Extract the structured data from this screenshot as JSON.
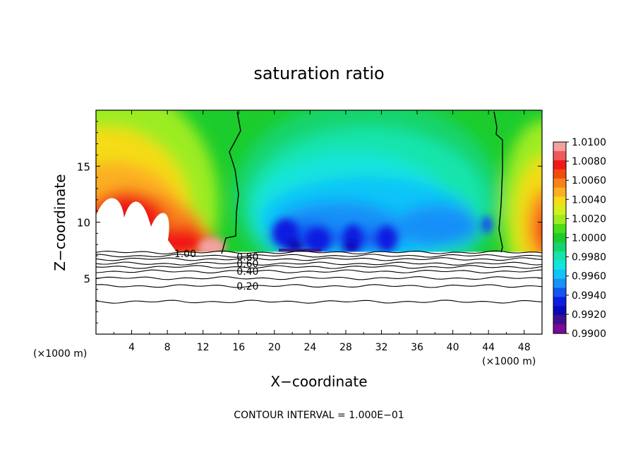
{
  "chart_data": {
    "type": "heatmap",
    "title": "saturation ratio",
    "xlabel": "X−coordinate",
    "ylabel": "Z−coordinate",
    "x_unit_left": "(×1000 m)",
    "x_unit_right": "(×1000 m)",
    "footer": "CONTOUR INTERVAL = 1.000E−01",
    "xlim": [
      0,
      50
    ],
    "ylim": [
      0,
      20
    ],
    "x_ticks": [
      4,
      8,
      12,
      16,
      20,
      24,
      28,
      32,
      36,
      40,
      44,
      48
    ],
    "y_ticks": [
      5,
      10,
      15
    ],
    "colorbar": {
      "labels": [
        "1.0100",
        "1.0080",
        "1.0060",
        "1.0040",
        "1.0020",
        "1.0000",
        "0.9980",
        "0.9960",
        "0.9940",
        "0.9920",
        "0.9900"
      ],
      "bands": [
        {
          "value": 1.01,
          "color": "#f4a0a0"
        },
        {
          "value": 1.009,
          "color": "#f05a5a"
        },
        {
          "value": 1.008,
          "color": "#f01818"
        },
        {
          "value": 1.007,
          "color": "#f44a10"
        },
        {
          "value": 1.006,
          "color": "#f8821a"
        },
        {
          "value": 1.005,
          "color": "#fcae24"
        },
        {
          "value": 1.004,
          "color": "#f4dc18"
        },
        {
          "value": 1.003,
          "color": "#d4f01c"
        },
        {
          "value": 1.002,
          "color": "#9cec20"
        },
        {
          "value": 1.001,
          "color": "#4cdc18"
        },
        {
          "value": 1.0,
          "color": "#1ccc2c"
        },
        {
          "value": 0.999,
          "color": "#14d46c"
        },
        {
          "value": 0.998,
          "color": "#14e4ac"
        },
        {
          "value": 0.997,
          "color": "#14e4dc"
        },
        {
          "value": 0.996,
          "color": "#10c4f8"
        },
        {
          "value": 0.995,
          "color": "#1890f8"
        },
        {
          "value": 0.994,
          "color": "#1454f0"
        },
        {
          "value": 0.993,
          "color": "#0c1ce0"
        },
        {
          "value": 0.992,
          "color": "#0a08b8"
        },
        {
          "value": 0.991,
          "color": "#40108c"
        },
        {
          "value": 0.99,
          "color": "#7a0a98"
        }
      ]
    },
    "contour_labels": [
      {
        "text": "1.00",
        "x": 10.0,
        "z": 7.2
      },
      {
        "text": "0.80",
        "x": 17.0,
        "z": 6.9
      },
      {
        "text": "0.60",
        "x": 17.0,
        "z": 6.3
      },
      {
        "text": "0.40",
        "x": 17.0,
        "z": 5.6
      },
      {
        "text": "0.20",
        "x": 17.0,
        "z": 4.3
      }
    ],
    "contour_levels_below_cloud_z": [
      7.3,
      7.0,
      6.7,
      6.3,
      6.0,
      5.6,
      5.0,
      4.3,
      2.9
    ]
  }
}
